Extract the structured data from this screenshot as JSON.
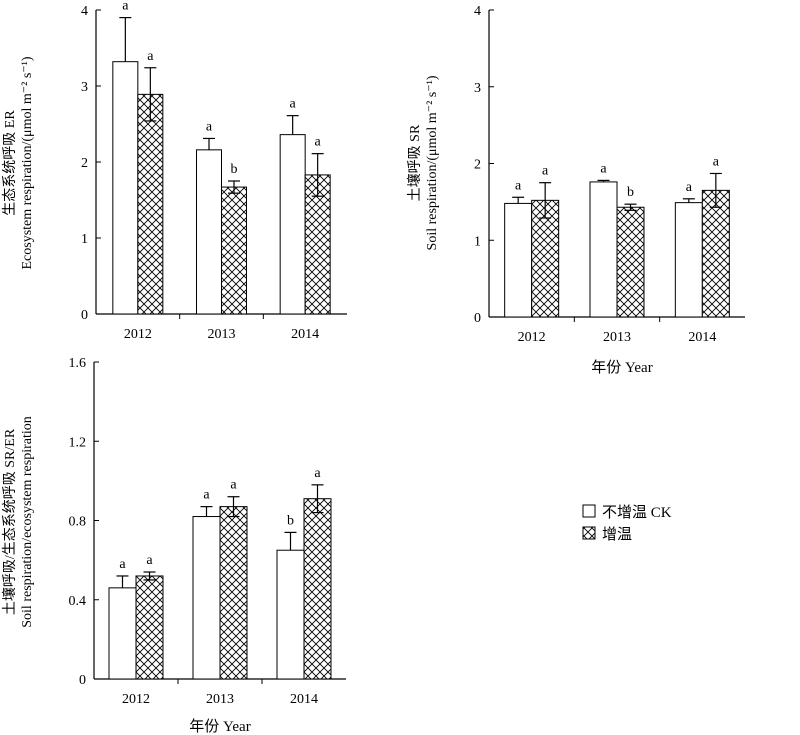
{
  "chart_data": [
    {
      "id": "er",
      "type": "bar",
      "categories": [
        "2012",
        "2013",
        "2014"
      ],
      "ylabel_line1": "生态系统呼吸 ER",
      "ylabel_line2": "Ecosystem respiration/(μmol m⁻² s⁻¹)",
      "xlabel": "",
      "ylim": [
        0,
        4
      ],
      "yticks": [
        "0",
        "1",
        "2",
        "3",
        "4"
      ],
      "series": [
        {
          "name": "不增温 CK",
          "values": [
            3.32,
            2.16,
            2.36
          ],
          "errors": [
            0.58,
            0.15,
            0.25
          ],
          "letters": [
            "a",
            "a",
            "a"
          ]
        },
        {
          "name": "增温",
          "values": [
            2.89,
            1.67,
            1.83
          ],
          "errors": [
            0.35,
            0.08,
            0.28
          ],
          "letters": [
            "a",
            "b",
            "a"
          ]
        }
      ]
    },
    {
      "id": "sr",
      "type": "bar",
      "categories": [
        "2012",
        "2013",
        "2014"
      ],
      "ylabel_line1": "土壤呼吸 SR",
      "ylabel_line2": "Soil respiration/(μmol m⁻² s⁻¹)",
      "xlabel": "年份 Year",
      "ylim": [
        0,
        4
      ],
      "yticks": [
        "0",
        "1",
        "2",
        "3",
        "4"
      ],
      "series": [
        {
          "name": "不增温 CK",
          "values": [
            1.48,
            1.76,
            1.49
          ],
          "errors": [
            0.08,
            0.02,
            0.05
          ],
          "letters": [
            "a",
            "a",
            "a"
          ]
        },
        {
          "name": "增温",
          "values": [
            1.52,
            1.43,
            1.65
          ],
          "errors": [
            0.23,
            0.04,
            0.22
          ],
          "letters": [
            "a",
            "b",
            "a"
          ]
        }
      ]
    },
    {
      "id": "ratio",
      "type": "bar",
      "categories": [
        "2012",
        "2013",
        "2014"
      ],
      "ylabel_line1": "土壤呼吸/生态系统呼吸 SR/ER",
      "ylabel_line2": "Soil respiration/ecosystem respiration",
      "xlabel": "年份 Year",
      "ylim": [
        0,
        1.6
      ],
      "yticks": [
        "0",
        "0.4",
        "0.8",
        "1.2",
        "1.6"
      ],
      "series": [
        {
          "name": "不增温 CK",
          "values": [
            0.46,
            0.82,
            0.65
          ],
          "errors": [
            0.06,
            0.05,
            0.09
          ],
          "letters": [
            "a",
            "a",
            "b"
          ]
        },
        {
          "name": "增温",
          "values": [
            0.52,
            0.87,
            0.91
          ],
          "errors": [
            0.02,
            0.05,
            0.07
          ],
          "letters": [
            "a",
            "a",
            "a"
          ]
        }
      ]
    }
  ],
  "legend": {
    "items": [
      {
        "label": "不增温 CK",
        "pattern": "open"
      },
      {
        "label": "增温",
        "pattern": "crosshatch"
      }
    ]
  }
}
